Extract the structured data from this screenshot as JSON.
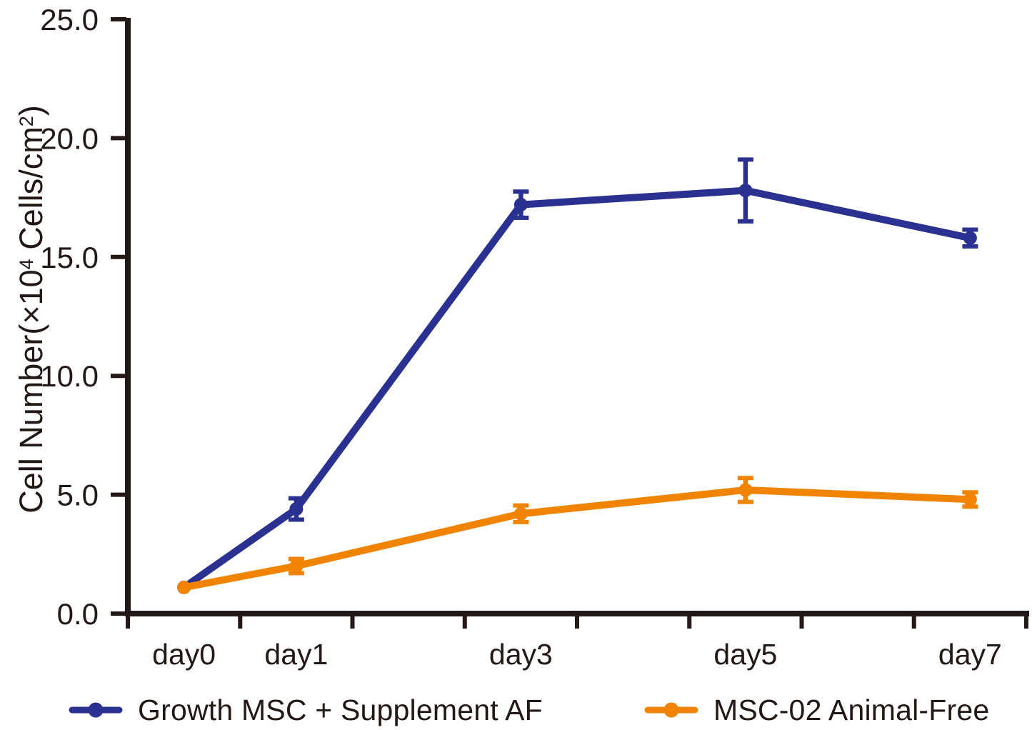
{
  "chart_data": {
    "type": "line",
    "title": "",
    "xlabel": "",
    "ylabel": "Cell Number(×10⁴ Cells/cm²)",
    "ylabel_parts": [
      {
        "text": "Cell Number(×10"
      },
      {
        "text": "4",
        "sup": true
      },
      {
        "text": " Cells/cm"
      },
      {
        "text": "2",
        "sup": true
      },
      {
        "text": ")"
      }
    ],
    "x_days": [
      0,
      1,
      3,
      5,
      7
    ],
    "x_tick_labels": [
      "day0",
      "day1",
      "day3",
      "day5",
      "day7"
    ],
    "y_ticks": [
      0,
      5,
      10,
      15,
      20,
      25
    ],
    "y_tick_labels": [
      "0.0",
      "5.0",
      "10.0",
      "15.0",
      "20.0",
      "25.0"
    ],
    "ylim": [
      0,
      25
    ],
    "grid": false,
    "legend_position": "bottom",
    "series": [
      {
        "name": "Growth MSC + Supplement AF",
        "color": "#2a3190",
        "marker": "circle",
        "values": [
          1.1,
          4.4,
          17.2,
          17.8,
          15.8
        ],
        "errors": [
          0,
          0.45,
          0.55,
          1.3,
          0.35
        ]
      },
      {
        "name": "MSC-02 Animal-Free",
        "color": "#f08300",
        "marker": "circle",
        "values": [
          1.1,
          2.0,
          4.2,
          5.2,
          4.8
        ],
        "errors": [
          0,
          0.3,
          0.35,
          0.5,
          0.3
        ]
      }
    ]
  },
  "colors": {
    "axis": "#231815",
    "text": "#231815",
    "background": "#ffffff"
  }
}
